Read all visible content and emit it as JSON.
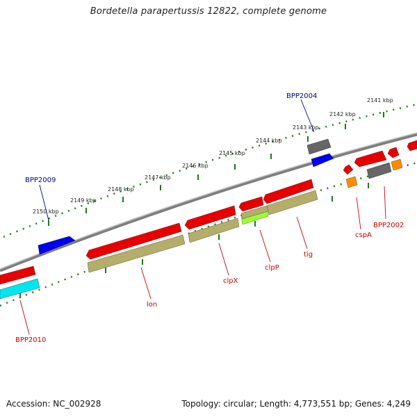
{
  "title": "Bordetella parapertussis 12822, complete genome",
  "footer": {
    "accession": "Accession: NC_002928",
    "summary": "Topology: circular; Length: 4,773,551 bp; Genes: 4,249"
  },
  "kbp_ticks": [
    "2150 kbp",
    "2149 kbp",
    "2148 kbp",
    "2147 kbp",
    "2146 kbp",
    "2145 kbp",
    "2144 kbp",
    "2143 kbp",
    "2142 kbp",
    "2141 kbp"
  ],
  "gene_labels": {
    "top": [
      "BPP2009",
      "BPP2004"
    ],
    "bottom": [
      "BPP2010",
      "lon",
      "clpX",
      "clpP",
      "tig",
      "cspA",
      "BPP2002"
    ]
  },
  "colors": {
    "label_top": "#00008b",
    "label_bottom": "#cc0000",
    "backbone": "#8c8c8c",
    "tick": "#1a7a1a",
    "cds_forward": "#e60000",
    "cds_blue": "#0000ee",
    "cds_gray": "#666666",
    "gene_olive": "#b5ad6b",
    "gene_cyan": "#00e5ee",
    "gene_green": "#99ff33",
    "gene_orange": "#ff8c00"
  }
}
